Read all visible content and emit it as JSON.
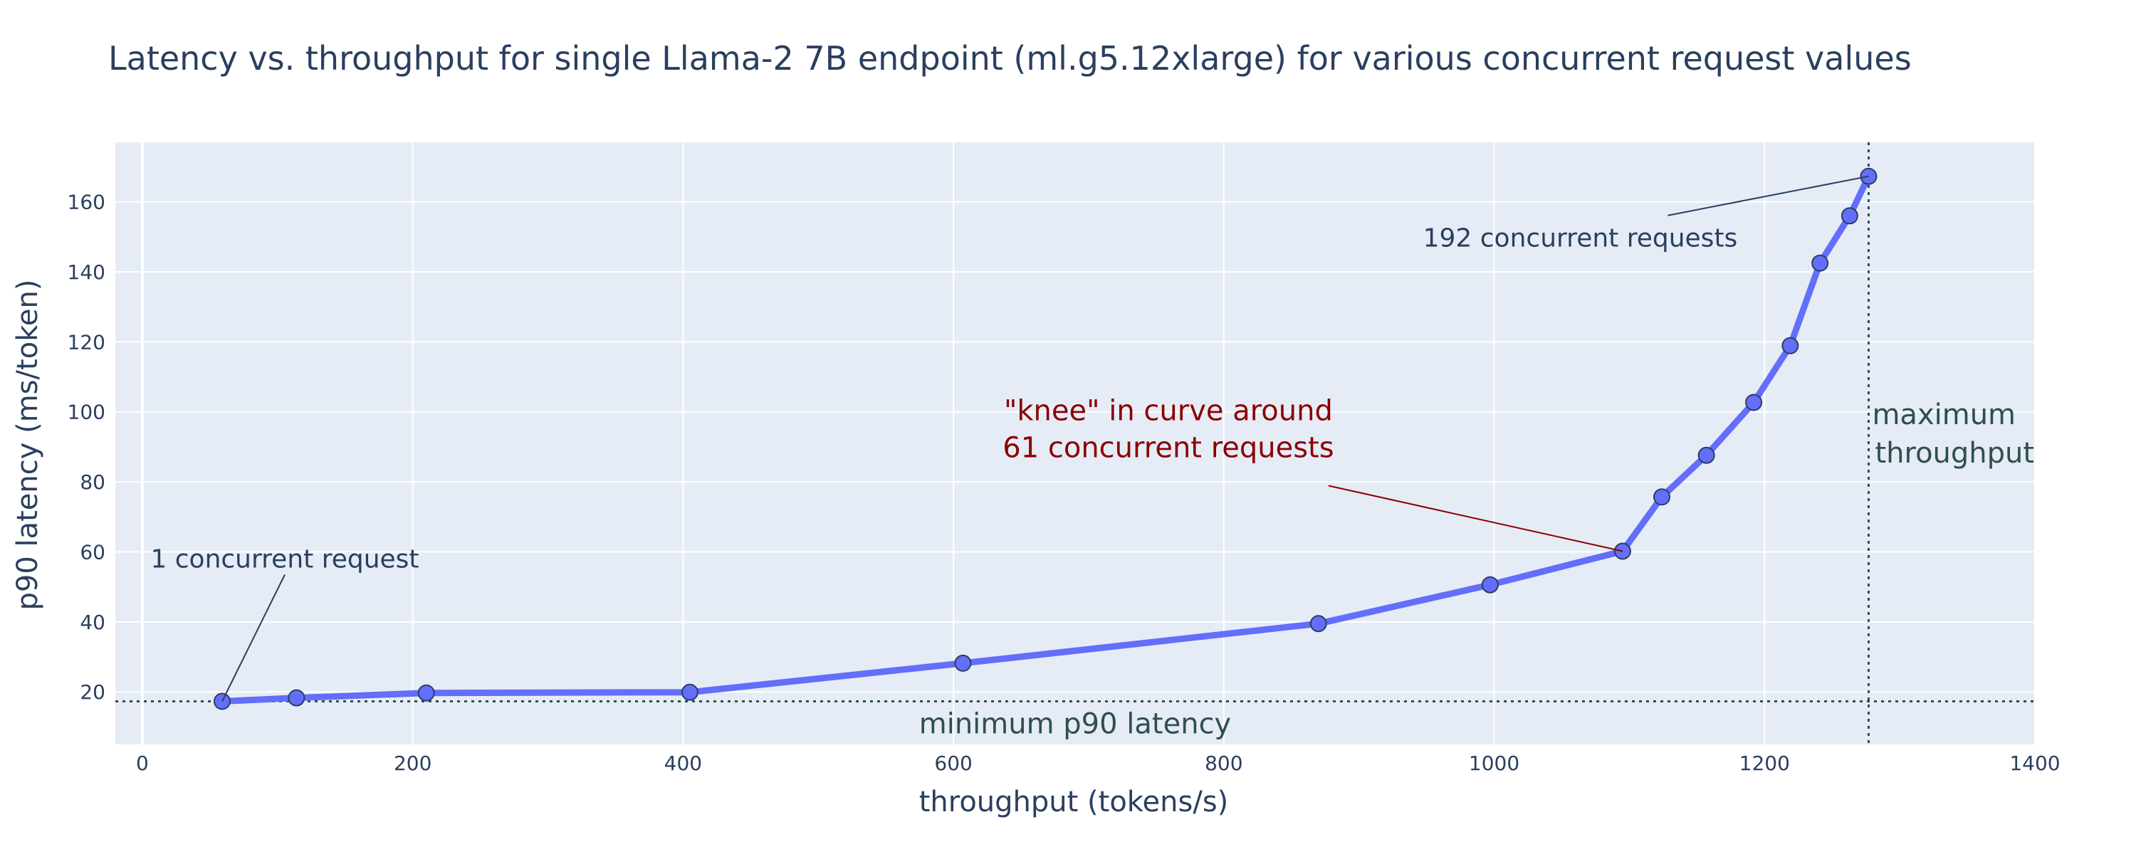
{
  "chart_data": {
    "type": "line",
    "title": "Latency vs. throughput for single Llama-2 7B endpoint (ml.g5.12xlarge) for various concurrent request values",
    "xlabel": "throughput (tokens/s)",
    "ylabel": "p90 latency (ms/token)",
    "xlim": [
      -20,
      1400
    ],
    "ylim": [
      5,
      177
    ],
    "xticks": [
      0,
      200,
      400,
      600,
      800,
      1000,
      1200,
      1400
    ],
    "yticks": [
      20,
      40,
      60,
      80,
      100,
      120,
      140,
      160
    ],
    "grid": true,
    "legend": "none",
    "series": [
      {
        "color": "#636efa",
        "points": [
          {
            "x": 59,
            "y": 17.3
          },
          {
            "x": 114,
            "y": 18.3
          },
          {
            "x": 210,
            "y": 19.7
          },
          {
            "x": 405,
            "y": 19.9
          },
          {
            "x": 607,
            "y": 28.2
          },
          {
            "x": 870,
            "y": 39.5
          },
          {
            "x": 997,
            "y": 50.6
          },
          {
            "x": 1095,
            "y": 60.2
          },
          {
            "x": 1124,
            "y": 75.7
          },
          {
            "x": 1157,
            "y": 87.6
          },
          {
            "x": 1192,
            "y": 102.7
          },
          {
            "x": 1219,
            "y": 118.9
          },
          {
            "x": 1241,
            "y": 142.5
          },
          {
            "x": 1263,
            "y": 156.0
          },
          {
            "x": 1277,
            "y": 167.3
          }
        ]
      }
    ],
    "reference_lines": [
      {
        "orientation": "horizontal",
        "value": 17.3,
        "label": "minimum p90 latency",
        "color": "#2f4f4f"
      },
      {
        "orientation": "vertical",
        "value": 1277,
        "label": [
          "maximum",
          "throughput"
        ],
        "color": "#2f4f4f"
      }
    ],
    "annotations": [
      {
        "text": [
          "1 concurrent request"
        ],
        "point_index": 0,
        "color": "#2a3f5f"
      },
      {
        "text": [
          "\"knee\" in curve around",
          "61 concurrent requests"
        ],
        "point_index": 7,
        "color": "#8b0000"
      },
      {
        "text": [
          "192 concurrent requests"
        ],
        "point_index": 14,
        "color": "#2a3f5f"
      }
    ],
    "colors": {
      "plot_bg": "#e5ecf6",
      "grid": "#ffffff",
      "text": "#2a3f5f",
      "marker_stroke": "#2a3f5f"
    }
  }
}
